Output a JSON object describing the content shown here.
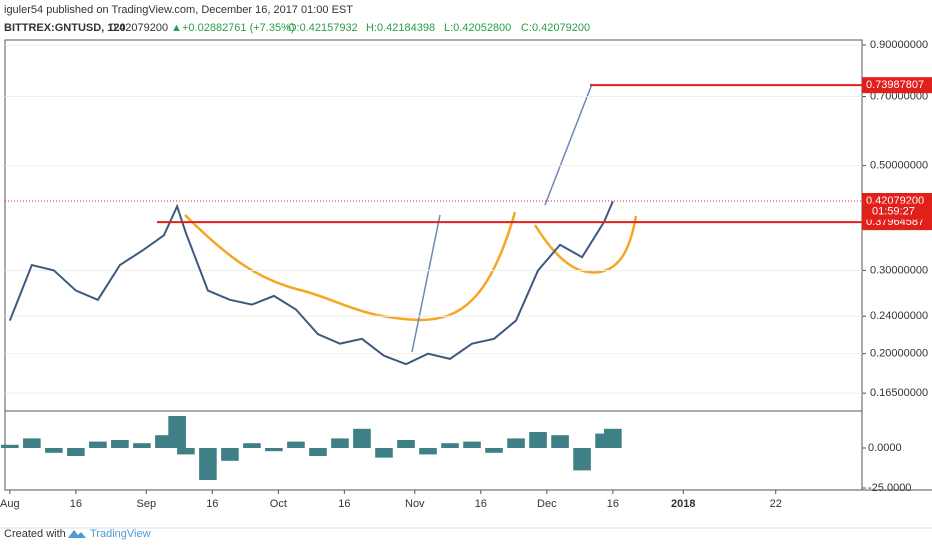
{
  "header": {
    "publisher": "iguler54 published on TradingView.com, December 16, 2017 01:00 EST",
    "symbol": "BITTREX:GNTUSD, 120",
    "last": "0.42079200",
    "arrow": "▲",
    "change": "+0.02882761 (+7.35%)",
    "open": "O:0.42157932",
    "high": "H:0.42184398",
    "low": "L:0.42052800",
    "close": "C:0.42079200"
  },
  "chart_data": {
    "type": "line",
    "log_scale": true,
    "color": "#3d5a80",
    "x": [
      0,
      5,
      10,
      15,
      20,
      25,
      30,
      35,
      38,
      40,
      45,
      50,
      55,
      60,
      65,
      70,
      75,
      80,
      85,
      90,
      95,
      100,
      105,
      110,
      115,
      120,
      125,
      130,
      135,
      137
    ],
    "values": [
      0.235,
      0.308,
      0.3,
      0.272,
      0.26,
      0.308,
      0.33,
      0.356,
      0.41,
      0.36,
      0.272,
      0.26,
      0.254,
      0.265,
      0.248,
      0.22,
      0.21,
      0.215,
      0.198,
      0.19,
      0.2,
      0.195,
      0.21,
      0.215,
      0.235,
      0.3,
      0.34,
      0.32,
      0.38,
      0.42
    ],
    "xlim": [
      -1.1,
      193.6
    ],
    "ylim": [
      0.152,
      0.922
    ],
    "xticks": [
      {
        "value": 0,
        "label": "Aug"
      },
      {
        "value": 15,
        "label": "16"
      },
      {
        "value": 31,
        "label": "Sep"
      },
      {
        "value": 46,
        "label": "16"
      },
      {
        "value": 61,
        "label": "Oct"
      },
      {
        "value": 76,
        "label": "16"
      },
      {
        "value": 92,
        "label": "Nov"
      },
      {
        "value": 107,
        "label": "16"
      },
      {
        "value": 122,
        "label": "Dec"
      },
      {
        "value": 137,
        "label": "16"
      },
      {
        "value": 153,
        "label": "2018"
      },
      {
        "value": 174,
        "label": "22"
      }
    ],
    "yticks": [
      {
        "value": 0.9,
        "label": "0.90000000"
      },
      {
        "value": 0.7,
        "label": "0.70000000"
      },
      {
        "value": 0.5,
        "label": "0.50000000"
      },
      {
        "value": 0.3,
        "label": "0.30000000"
      },
      {
        "value": 0.24,
        "label": "0.24000000"
      },
      {
        "value": 0.2,
        "label": "0.20000000"
      },
      {
        "value": 0.165,
        "label": "0.16500000"
      }
    ],
    "levels": [
      {
        "value": 0.73987807,
        "color": "#e0201b"
      },
      {
        "value": {
          "value": 0.420792,
          "label": "0.42079200"
        },
        "color": "#e0201b",
        "dotted": true
      },
      {
        "value": 0.37964587,
        "color": "#e0201b"
      }
    ],
    "countdown": "01:59:27",
    "oscillator": {
      "color": "#3f7f86",
      "values": [
        2,
        6,
        -3,
        -5,
        4,
        5,
        3,
        8,
        20,
        -4,
        -20,
        -8,
        3,
        -2,
        4,
        -5,
        6,
        12,
        -6,
        5,
        -4,
        3,
        4,
        -3,
        6,
        10,
        8,
        -14,
        9,
        12
      ],
      "ylim": [
        -26.25,
        22.5
      ],
      "yticks": [
        {
          "value": 0,
          "label": "0.0000"
        },
        {
          "value": -25,
          "label": "-25.0000"
        }
      ]
    }
  },
  "footer": {
    "created": "Created with",
    "brand": "TradingView"
  }
}
